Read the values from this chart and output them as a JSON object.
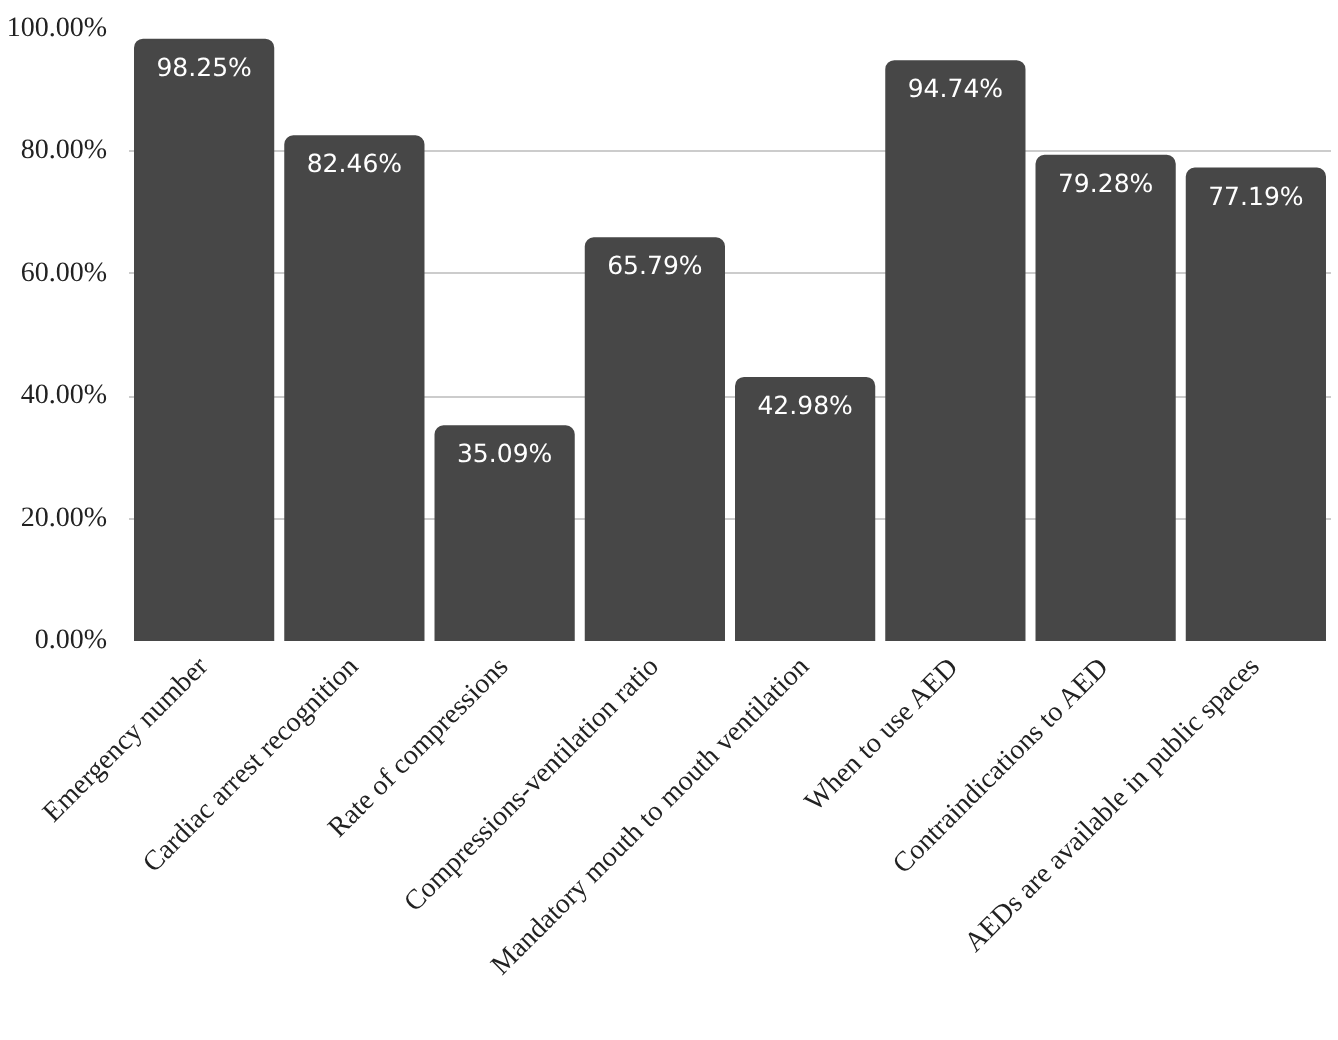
{
  "chart_data": {
    "type": "bar",
    "categories": [
      "Emergency number",
      "Cardiac arrest recognition",
      "Rate of compressions",
      "Compressions-ventilation ratio",
      "Mandatory mouth to mouth ventilation",
      "When to use AED",
      "Contraindications to AED",
      "AEDs are available in public spaces"
    ],
    "values": [
      98.25,
      82.46,
      35.09,
      65.79,
      42.98,
      94.74,
      79.28,
      77.19
    ],
    "value_labels": [
      "98.25%",
      "82.46%",
      "35.09%",
      "65.79%",
      "42.98%",
      "94.74%",
      "79.28%",
      "77.19%"
    ],
    "color": "#474747",
    "ylim": [
      0,
      100
    ],
    "yticks": [
      {
        "value": 0,
        "label": "0.00%"
      },
      {
        "value": 20,
        "label": "20.00%"
      },
      {
        "value": 40,
        "label": "40.00%"
      },
      {
        "value": 60,
        "label": "60.00%"
      },
      {
        "value": 80,
        "label": "80.00%"
      },
      {
        "value": 100,
        "label": "100.00%"
      }
    ],
    "grid": "y"
  }
}
